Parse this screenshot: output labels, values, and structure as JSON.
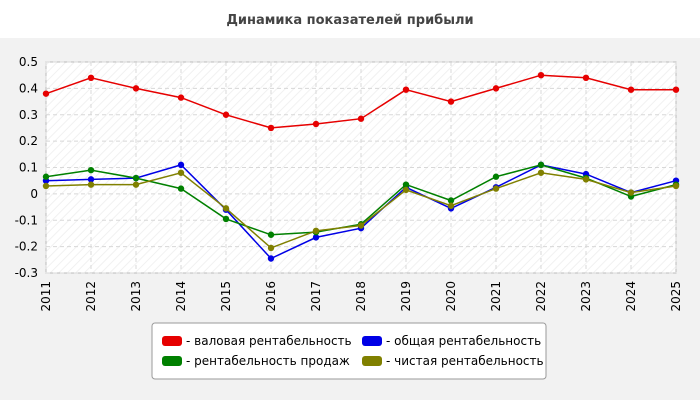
{
  "chart_data": {
    "type": "line",
    "title": "Динамика показателей прибыли",
    "xlabel": "",
    "ylabel": "",
    "x": [
      "2011",
      "2012",
      "2013",
      "2014",
      "2015",
      "2016",
      "2017",
      "2018",
      "2019",
      "2020",
      "2021",
      "2022",
      "2023",
      "2024",
      "2025"
    ],
    "ylim": [
      -0.3,
      0.5
    ],
    "yticks": [
      "0.5",
      "0.4",
      "0.3",
      "0.2",
      "0.1",
      "0",
      "-0.1",
      "-0.2",
      "-0.3"
    ],
    "grid": true,
    "legend_position": "bottom",
    "series": [
      {
        "name": "- валовая рентабельность",
        "color": "#e60000",
        "values": [
          0.38,
          0.44,
          0.4,
          0.365,
          0.3,
          0.25,
          0.265,
          0.285,
          0.395,
          0.35,
          0.4,
          0.45,
          0.44,
          0.395,
          0.395
        ]
      },
      {
        "name": "- общая рентабельность",
        "color": "#0000e6",
        "values": [
          0.05,
          0.055,
          0.06,
          0.11,
          -0.06,
          -0.245,
          -0.165,
          -0.13,
          0.025,
          -0.055,
          0.025,
          0.11,
          0.075,
          0.005,
          0.05
        ]
      },
      {
        "name": "- рентабельность продаж",
        "color": "#008000",
        "values": [
          0.065,
          0.09,
          0.06,
          0.02,
          -0.095,
          -0.155,
          -0.145,
          -0.115,
          0.035,
          -0.025,
          0.065,
          0.11,
          0.06,
          -0.01,
          0.035
        ]
      },
      {
        "name": "- чистая рентабельность",
        "color": "#808000",
        "values": [
          0.03,
          0.035,
          0.035,
          0.08,
          -0.055,
          -0.205,
          -0.14,
          -0.12,
          0.015,
          -0.045,
          0.02,
          0.08,
          0.055,
          0.005,
          0.03
        ]
      }
    ]
  }
}
